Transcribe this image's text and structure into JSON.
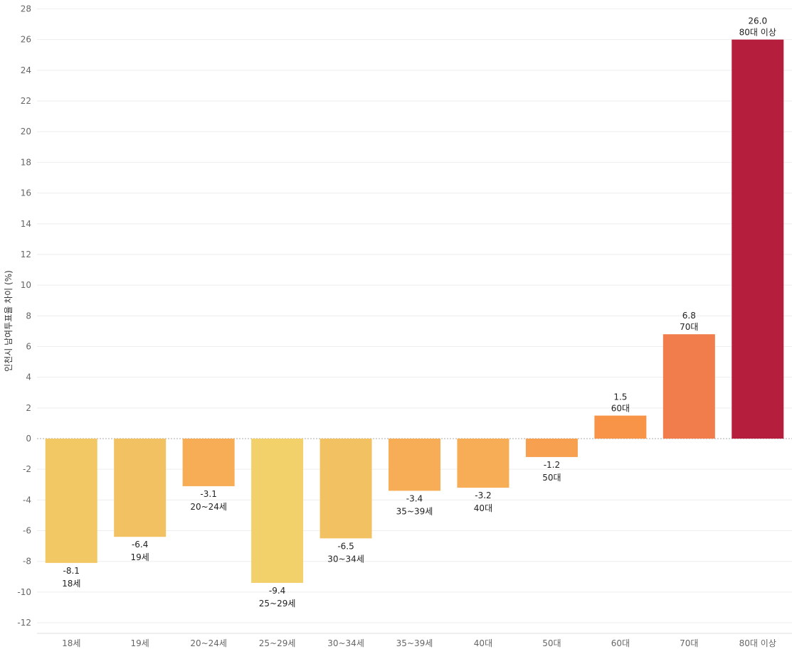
{
  "chart_data": {
    "type": "bar",
    "title": "",
    "xlabel": "",
    "ylabel": "인천시 남여투표율 차이 (%)",
    "categories": [
      "18세",
      "19세",
      "20~24세",
      "25~29세",
      "30~34세",
      "35~39세",
      "40대",
      "50대",
      "60대",
      "70대",
      "80대 이상"
    ],
    "values": [
      -8.1,
      -6.4,
      -3.1,
      -9.4,
      -6.5,
      -3.4,
      -3.2,
      -1.2,
      1.5,
      6.8,
      26.0
    ],
    "value_labels": [
      "-8.1",
      "-6.4",
      "-3.1",
      "-9.4",
      "-6.5",
      "-3.4",
      "-3.2",
      "-1.2",
      "1.5",
      "6.8",
      "26.0"
    ],
    "bar_colors": [
      "#f2c864",
      "#f2c262",
      "#f6ad55",
      "#f2d06a",
      "#f2c262",
      "#f6ad55",
      "#f6ad55",
      "#f6a050",
      "#f79447",
      "#f07d4b",
      "#b61e3e"
    ],
    "ylim": [
      -13,
      28
    ],
    "yticks": [
      -12,
      -10,
      -8,
      -6,
      -4,
      -2,
      0,
      2,
      4,
      6,
      8,
      10,
      12,
      14,
      16,
      18,
      20,
      22,
      24,
      26,
      28
    ],
    "grid": true,
    "legend": "none"
  }
}
